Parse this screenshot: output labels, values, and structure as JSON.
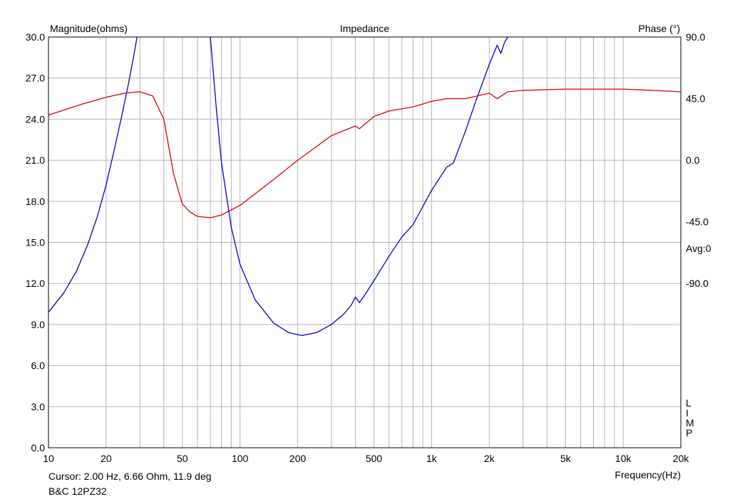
{
  "chart_data": {
    "type": "line",
    "title": "Impedance",
    "xlabel": "Frequency(Hz)",
    "ylabel_left": "Magnitude(ohms)",
    "ylabel_right": "Phase (°)",
    "x_scale": "log",
    "xlim": [
      10,
      20000
    ],
    "ylim_left": [
      0,
      30
    ],
    "ylim_right": [
      -210,
      90
    ],
    "x_ticks": [
      {
        "v": 10,
        "label": "10"
      },
      {
        "v": 20,
        "label": "20"
      },
      {
        "v": 50,
        "label": "50"
      },
      {
        "v": 100,
        "label": "100"
      },
      {
        "v": 200,
        "label": "200"
      },
      {
        "v": 500,
        "label": "500"
      },
      {
        "v": 1000,
        "label": "1k"
      },
      {
        "v": 2000,
        "label": "2k"
      },
      {
        "v": 5000,
        "label": "5k"
      },
      {
        "v": 10000,
        "label": "10k"
      },
      {
        "v": 20000,
        "label": "20k"
      }
    ],
    "y_ticks_left": [
      "0.0",
      "3.0",
      "6.0",
      "9.0",
      "12.0",
      "15.0",
      "18.0",
      "21.0",
      "24.0",
      "27.0",
      "30.0"
    ],
    "y_ticks_right": [
      {
        "v": 90,
        "label": "90.0"
      },
      {
        "v": 45,
        "label": "45.0"
      },
      {
        "v": 0,
        "label": "0.0"
      },
      {
        "v": -45,
        "label": "-45.0"
      },
      {
        "v": -90,
        "label": "-90.0"
      }
    ],
    "avg_label": "Avg:0",
    "limp_label": [
      "L",
      "I",
      "M",
      "P"
    ],
    "grid": true,
    "series": [
      {
        "axis": "left",
        "color": "#0000cc",
        "x": [
          10,
          12,
          14,
          16,
          18,
          20,
          22,
          24,
          26,
          28,
          29,
          70,
          75,
          80,
          90,
          100,
          120,
          150,
          180,
          210,
          250,
          300,
          350,
          380,
          400,
          420,
          450,
          500,
          600,
          700,
          800,
          1000,
          1200,
          1300,
          1500,
          1700,
          2000,
          2200,
          2300,
          2400,
          2500
        ],
        "values": [
          9.9,
          11.3,
          12.9,
          14.8,
          16.9,
          19.2,
          21.7,
          24.1,
          26.4,
          28.8,
          30.0,
          30.0,
          25.0,
          20.8,
          16.1,
          13.4,
          10.8,
          9.1,
          8.4,
          8.2,
          8.4,
          9.0,
          9.8,
          10.4,
          11.0,
          10.6,
          11.2,
          12.2,
          14.0,
          15.4,
          16.3,
          18.8,
          20.5,
          20.8,
          23.1,
          25.3,
          28.0,
          29.4,
          28.8,
          29.6,
          30.0
        ]
      },
      {
        "axis": "right",
        "color": "#dd0000",
        "x": [
          10,
          15,
          20,
          25,
          30,
          35,
          40,
          45,
          50,
          55,
          60,
          70,
          80,
          100,
          150,
          200,
          300,
          400,
          420,
          500,
          600,
          800,
          1000,
          1200,
          1500,
          2000,
          2200,
          2500,
          3000,
          5000,
          10000,
          20000
        ],
        "values": [
          33,
          41,
          46,
          49,
          50,
          47,
          30,
          -10,
          -32,
          -38,
          -41,
          -42,
          -40,
          -33,
          -14,
          0,
          18,
          25,
          23,
          32,
          36,
          39,
          43,
          45,
          45,
          49,
          45,
          50,
          51,
          52,
          52,
          50
        ]
      }
    ]
  },
  "footer": {
    "cursor_text": "Cursor: 2.00 Hz, 6.66 Ohm, 11.9 deg",
    "model_text": "B&C 12PZ32"
  },
  "colors": {
    "grid": "#b4b4b4",
    "axis": "#000000",
    "magnitude": "#0000cc",
    "phase": "#dd0000"
  }
}
